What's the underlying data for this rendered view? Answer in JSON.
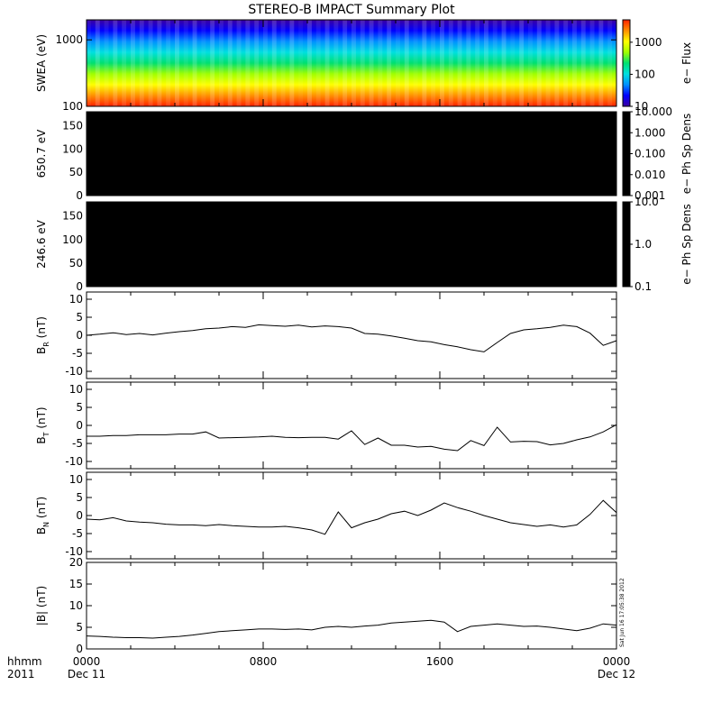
{
  "title": "STEREO-B IMPACT Summary Plot",
  "footer": {
    "row1_label": "hhmm",
    "row2_label": "2011",
    "start_time": "0000",
    "start_date": "Dec 11",
    "mid_time": "0800",
    "mid2_time": "1600",
    "end_time": "0000",
    "end_date": "Dec 12",
    "stamp": "Sat Jun 16 17:05:38 2012"
  },
  "chart_data": [
    {
      "type": "heatmap",
      "id": "swea",
      "ylabel": "SWEA (eV)",
      "yscale": "log",
      "ylim": [
        100,
        2000
      ],
      "yticks": [
        "1000",
        "100"
      ],
      "colorbar": {
        "label": "e− Flux",
        "scale": "log",
        "range": [
          10,
          5000
        ],
        "ticks": [
          "1000",
          "100",
          "10"
        ]
      },
      "colormap": [
        "#3c00a0",
        "#0000ff",
        "#0090ff",
        "#00e0e0",
        "#00e070",
        "#a0ff00",
        "#ffff00",
        "#ff9000",
        "#ff2000"
      ]
    },
    {
      "type": "heatmap",
      "id": "pad650",
      "ylabel": "650.7 eV",
      "ylim": [
        0,
        180
      ],
      "yticks": [
        "150",
        "100",
        "50",
        "0"
      ],
      "fill": "#000000",
      "colorbar": {
        "label": "e− Ph Sp Dens",
        "scale": "log",
        "range": [
          0.001,
          10
        ],
        "ticks": [
          "10.000",
          "1.000",
          "0.100",
          "0.010",
          "0.001"
        ]
      }
    },
    {
      "type": "heatmap",
      "id": "pad246",
      "ylabel": "246.6 eV",
      "ylim": [
        0,
        180
      ],
      "yticks": [
        "150",
        "100",
        "50",
        "0"
      ],
      "fill": "#000000",
      "colorbar": {
        "label": "e− Ph Sp Dens",
        "scale": "log",
        "range": [
          0.1,
          10
        ],
        "ticks": [
          "10.0",
          "1.0",
          "0.1"
        ]
      }
    },
    {
      "type": "line",
      "id": "br",
      "ylabel_main": "B",
      "ylabel_sub": "R",
      "ylabel_unit": " (nT)",
      "ylim": [
        -12,
        12
      ],
      "yticks": [
        "10",
        "5",
        "0",
        "-5",
        "-10"
      ],
      "x": [
        0,
        0.6,
        1.2,
        1.8,
        2.4,
        3.0,
        3.6,
        4.2,
        4.8,
        5.4,
        6.0,
        6.6,
        7.2,
        7.8,
        8.4,
        9.0,
        9.6,
        10.2,
        10.8,
        11.4,
        12.0,
        12.6,
        13.2,
        13.8,
        14.4,
        15.0,
        15.6,
        16.2,
        16.8,
        17.4,
        18.0,
        18.6,
        19.2,
        19.8,
        20.4,
        21.0,
        21.6,
        22.2,
        22.8,
        23.4,
        24.0
      ],
      "y": [
        0.0,
        0.3,
        0.7,
        0.2,
        0.5,
        0.1,
        0.6,
        1.0,
        1.3,
        1.8,
        2.0,
        2.4,
        2.2,
        2.9,
        2.7,
        2.5,
        2.8,
        2.3,
        2.6,
        2.4,
        2.0,
        0.5,
        0.3,
        -0.2,
        -0.8,
        -1.5,
        -1.8,
        -2.6,
        -3.2,
        -4.0,
        -4.6,
        -2.0,
        0.5,
        1.5,
        1.8,
        2.2,
        2.8,
        2.4,
        0.6,
        -2.8,
        -1.5
      ]
    },
    {
      "type": "line",
      "id": "bt",
      "ylabel_main": "B",
      "ylabel_sub": "T",
      "ylabel_unit": " (nT)",
      "ylim": [
        -12,
        12
      ],
      "yticks": [
        "10",
        "5",
        "0",
        "-5",
        "-10"
      ],
      "x": [
        0,
        0.6,
        1.2,
        1.8,
        2.4,
        3.0,
        3.6,
        4.2,
        4.8,
        5.4,
        6.0,
        6.6,
        7.2,
        7.8,
        8.4,
        9.0,
        9.6,
        10.2,
        10.8,
        11.4,
        12.0,
        12.6,
        13.2,
        13.8,
        14.4,
        15.0,
        15.6,
        16.2,
        16.8,
        17.4,
        18.0,
        18.6,
        19.2,
        19.8,
        20.4,
        21.0,
        21.6,
        22.2,
        22.8,
        23.4,
        24.0
      ],
      "y": [
        -3.0,
        -3.0,
        -2.8,
        -2.8,
        -2.6,
        -2.6,
        -2.6,
        -2.4,
        -2.4,
        -1.8,
        -3.5,
        -3.4,
        -3.3,
        -3.2,
        -3.0,
        -3.3,
        -3.4,
        -3.3,
        -3.3,
        -3.8,
        -1.5,
        -5.3,
        -3.5,
        -5.5,
        -5.5,
        -6.0,
        -5.8,
        -6.6,
        -7.0,
        -4.2,
        -5.6,
        -0.5,
        -4.6,
        -4.4,
        -4.5,
        -5.4,
        -5.0,
        -4.0,
        -3.2,
        -1.8,
        0.2
      ]
    },
    {
      "type": "line",
      "id": "bn",
      "ylabel_main": "B",
      "ylabel_sub": "N",
      "ylabel_unit": " (nT)",
      "ylim": [
        -12,
        12
      ],
      "yticks": [
        "10",
        "5",
        "0",
        "-5",
        "-10"
      ],
      "x": [
        0,
        0.6,
        1.2,
        1.8,
        2.4,
        3.0,
        3.6,
        4.2,
        4.8,
        5.4,
        6.0,
        6.6,
        7.2,
        7.8,
        8.4,
        9.0,
        9.6,
        10.2,
        10.8,
        11.4,
        12.0,
        12.6,
        13.2,
        13.8,
        14.4,
        15.0,
        15.6,
        16.2,
        16.8,
        17.4,
        18.0,
        18.6,
        19.2,
        19.8,
        20.4,
        21.0,
        21.6,
        22.2,
        22.8,
        23.4,
        24.0
      ],
      "y": [
        -1.0,
        -1.2,
        -0.6,
        -1.5,
        -1.8,
        -2.0,
        -2.4,
        -2.6,
        -2.6,
        -2.8,
        -2.5,
        -2.8,
        -3.0,
        -3.2,
        -3.2,
        -3.0,
        -3.4,
        -4.0,
        -5.2,
        1.0,
        -3.4,
        -2.0,
        -1.0,
        0.5,
        1.2,
        0.0,
        1.5,
        3.5,
        2.2,
        1.2,
        0.0,
        -1.0,
        -2.0,
        -2.5,
        -3.0,
        -2.6,
        -3.2,
        -2.6,
        0.3,
        4.2,
        0.8
      ]
    },
    {
      "type": "line",
      "id": "bmag",
      "ylabel": "|B| (nT)",
      "ylim": [
        0,
        20
      ],
      "yticks": [
        "20",
        "15",
        "10",
        "5",
        "0"
      ],
      "x": [
        0,
        0.6,
        1.2,
        1.8,
        2.4,
        3.0,
        3.6,
        4.2,
        4.8,
        5.4,
        6.0,
        6.6,
        7.2,
        7.8,
        8.4,
        9.0,
        9.6,
        10.2,
        10.8,
        11.4,
        12.0,
        12.6,
        13.2,
        13.8,
        14.4,
        15.0,
        15.6,
        16.2,
        16.8,
        17.4,
        18.0,
        18.6,
        19.2,
        19.8,
        20.4,
        21.0,
        21.6,
        22.2,
        22.8,
        23.4,
        24.0
      ],
      "y": [
        3.0,
        2.9,
        2.7,
        2.6,
        2.6,
        2.5,
        2.7,
        2.9,
        3.2,
        3.6,
        4.0,
        4.2,
        4.4,
        4.6,
        4.6,
        4.5,
        4.6,
        4.4,
        5.0,
        5.2,
        5.0,
        5.3,
        5.5,
        6.0,
        6.2,
        6.4,
        6.6,
        6.2,
        4.0,
        5.2,
        5.5,
        5.8,
        5.5,
        5.2,
        5.3,
        5.0,
        4.6,
        4.2,
        4.8,
        5.8,
        5.5
      ]
    }
  ]
}
